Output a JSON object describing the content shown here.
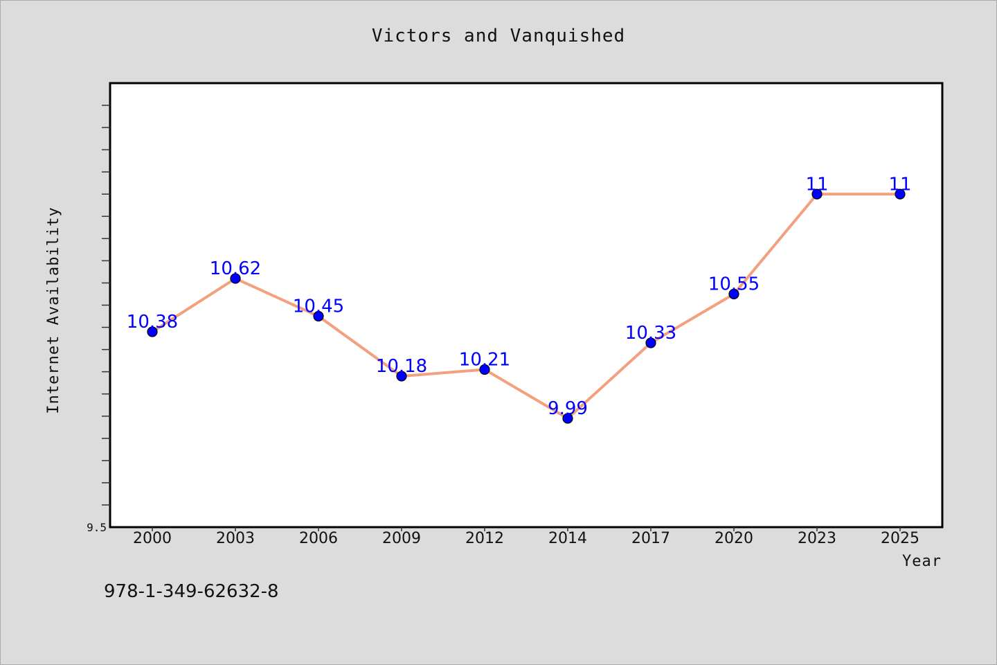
{
  "chart_data": {
    "type": "line",
    "title": "Victors and Vanquished",
    "xlabel": "Year",
    "ylabel": "Internet Availability",
    "categories": [
      "2000",
      "2003",
      "2006",
      "2009",
      "2012",
      "2014",
      "2017",
      "2020",
      "2023",
      "2025"
    ],
    "series": [
      {
        "values": [
          10.38,
          10.62,
          10.45,
          10.18,
          10.21,
          9.99,
          10.33,
          10.55,
          11,
          11
        ],
        "labels": [
          "10.38",
          "10.62",
          "10.45",
          "10.18",
          "10.21",
          "9.99",
          "10.33",
          "10.55",
          "11",
          "11"
        ]
      }
    ],
    "ylim": [
      9.5,
      11.5
    ],
    "yticks": [
      9.5
    ],
    "grid": false,
    "legend": "none",
    "colors": {
      "line": "#f4a07e",
      "marker": "#0000ff",
      "marker_edge": "#000000",
      "data_label": "#0000ff",
      "plot_bg": "#ffffff",
      "page_bg": "#dcdcdc"
    }
  },
  "footer": {
    "isbn": "978-1-349-62632-8"
  }
}
